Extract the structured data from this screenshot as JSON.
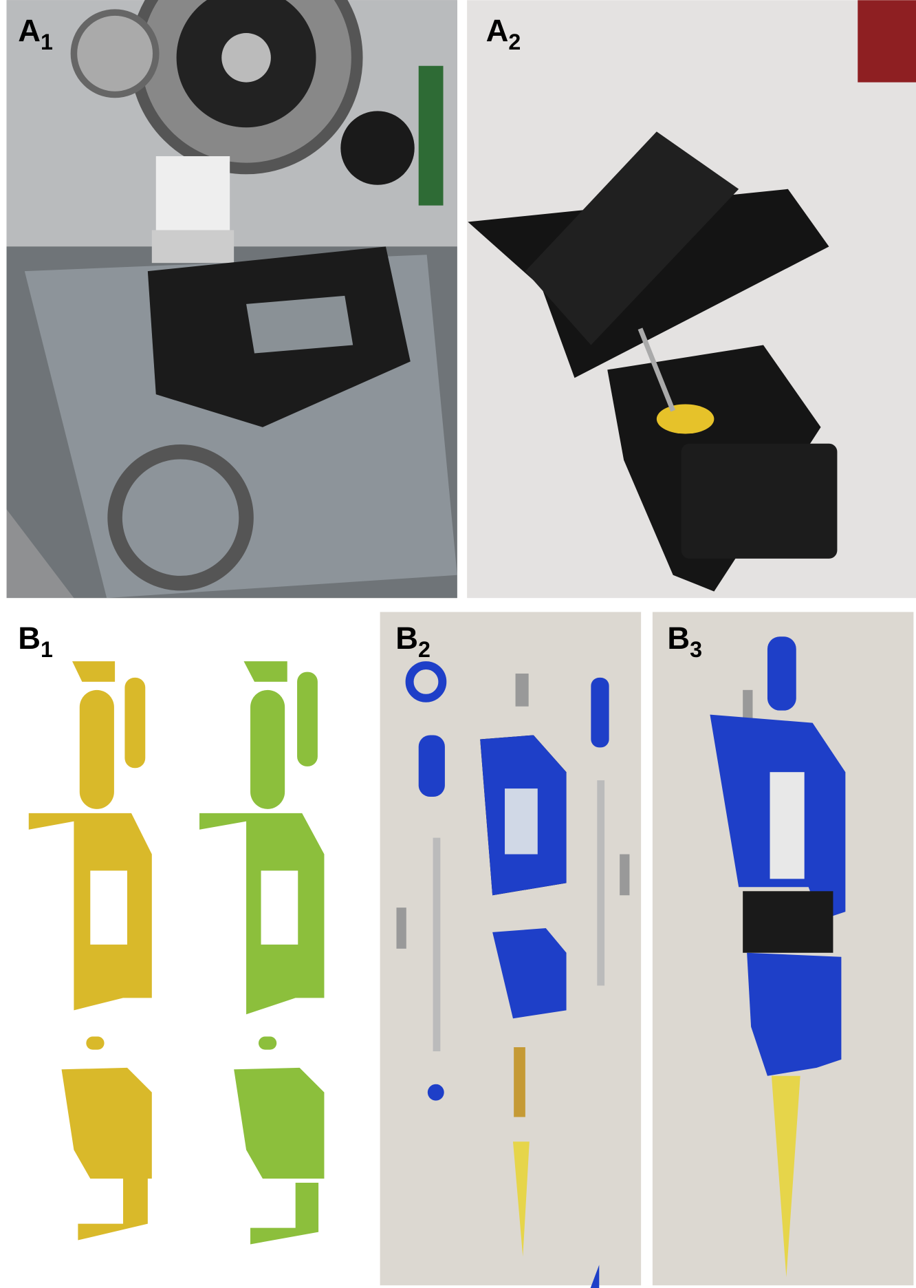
{
  "panels": [
    {
      "letter": "A",
      "index": "1"
    },
    {
      "letter": "A",
      "index": "2"
    },
    {
      "letter": "B",
      "index": "1"
    },
    {
      "letter": "B",
      "index": "2"
    },
    {
      "letter": "B",
      "index": "3"
    }
  ]
}
